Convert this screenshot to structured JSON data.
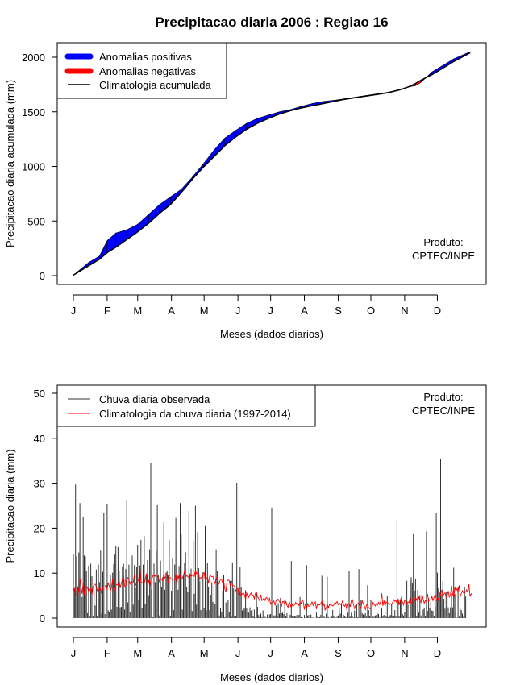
{
  "page_title": "Precipitacao diaria 2006 : Regiao 16",
  "credit": [
    "Produto:",
    "CPTEC/INPE"
  ],
  "months": [
    "J",
    "F",
    "M",
    "A",
    "M",
    "J",
    "J",
    "A",
    "S",
    "O",
    "N",
    "D"
  ],
  "colors": {
    "positive": "#0000ff",
    "negative": "#ff0000",
    "climatology": "#000000",
    "observed": "#333333",
    "daily_climatology": "#ff0000"
  },
  "chart_data": [
    {
      "type": "area",
      "title": "Precipitacao diaria 2006 : Regiao 16",
      "xlabel": "Meses (dados diarios)",
      "ylabel": "Precipitacao diaria acumulada (mm)",
      "xlim": [
        1,
        365
      ],
      "ylim": [
        0,
        2000
      ],
      "yticks": [
        0,
        500,
        1000,
        1500,
        2000
      ],
      "legend": {
        "position": "top-left",
        "entries": [
          {
            "label": "Anomalias positivas",
            "kind": "thick",
            "color": "#0000ff"
          },
          {
            "label": "Anomalias negativas",
            "kind": "thick",
            "color": "#ff0000"
          },
          {
            "label": "Climatologia acumulada",
            "kind": "line",
            "color": "#000000"
          }
        ]
      },
      "x": [
        1,
        15,
        25,
        32,
        40,
        50,
        60,
        70,
        80,
        90,
        100,
        110,
        120,
        130,
        140,
        150,
        160,
        170,
        180,
        190,
        200,
        210,
        220,
        230,
        240,
        250,
        260,
        270,
        280,
        290,
        300,
        305,
        310,
        315,
        320,
        330,
        340,
        350,
        365
      ],
      "climatology": [
        5,
        90,
        150,
        210,
        260,
        330,
        400,
        480,
        570,
        650,
        760,
        880,
        990,
        1090,
        1190,
        1270,
        1340,
        1395,
        1440,
        1480,
        1510,
        1535,
        1555,
        1575,
        1595,
        1615,
        1630,
        1645,
        1660,
        1675,
        1700,
        1715,
        1735,
        1760,
        1790,
        1840,
        1900,
        1960,
        2040
      ],
      "observed": [
        5,
        120,
        180,
        320,
        390,
        420,
        470,
        560,
        650,
        720,
        790,
        900,
        1020,
        1150,
        1260,
        1330,
        1395,
        1440,
        1470,
        1500,
        1520,
        1550,
        1575,
        1595,
        1605,
        1620,
        1635,
        1650,
        1665,
        1680,
        1705,
        1720,
        1730,
        1740,
        1770,
        1865,
        1925,
        1985,
        2050
      ]
    },
    {
      "type": "bar",
      "title": "",
      "xlabel": "Meses (dados diarios)",
      "ylabel": "Precipitacao diaria (mm)",
      "xlim": [
        1,
        365
      ],
      "ylim": [
        0,
        50
      ],
      "yticks": [
        0,
        10,
        20,
        30,
        40,
        50
      ],
      "legend": {
        "position": "top-left",
        "entries": [
          {
            "label": "Chuva diaria observada",
            "kind": "line",
            "color": "#333333"
          },
          {
            "label": "Climatologia da chuva diaria (1997-2014)",
            "kind": "line",
            "color": "#ff0000"
          }
        ]
      },
      "series": [
        {
          "name": "Chuva diaria observada",
          "values": [
            14.3,
            6.5,
            29.7,
            13.7,
            6.6,
            14.6,
            25.6,
            7.6,
            4.7,
            22.6,
            13.9,
            13.7,
            10.4,
            1.1,
            11.7,
            0.3,
            12.1,
            9.3,
            0.4,
            6.3,
            2.8,
            10.8,
            0.5,
            11.9,
            8.0,
            15.0,
            1.0,
            10.3,
            23.4,
            0.9,
            44.0,
            25.3,
            1.7,
            1.4,
            9.6,
            1.9,
            10.1,
            12.0,
            14.1,
            16.1,
            2.5,
            15.8,
            10.4,
            2.4,
            2.5,
            11.3,
            12.1,
            1.9,
            10.9,
            26.2,
            3.5,
            11.9,
            1.4,
            8.1,
            13.9,
            3.0,
            11.8,
            6.7,
            11.4,
            16.3,
            4.1,
            11.7,
            17.4,
            2.3,
            11.9,
            18.2,
            3.1,
            9.9,
            12.9,
            5.1,
            15.3,
            34.4,
            6.3,
            0.2,
            12.1,
            8.0,
            15.0,
            25.1,
            9.7,
            0.6,
            12.8,
            7.0,
            9.1,
            21.3,
            6.3,
            10.1,
            10.6,
            9.6,
            17.4,
            0.5,
            6.1,
            13.3,
            1.8,
            11.9,
            22.3,
            17.6,
            6.3,
            11.6,
            25.6,
            18.6,
            1.9,
            9.5,
            12.3,
            14.6,
            7.0,
            5.8,
            23.9,
            9.7,
            11.0,
            1.6,
            17.2,
            5.4,
            25.0,
            3.0,
            19.1,
            11.1,
            8.2,
            1.8,
            17.5,
            10.2,
            2.2,
            20.5,
            1.7,
            12.2,
            7.0,
            1.8,
            5.2,
            8.0,
            3.6,
            7.6,
            3.1,
            15.3,
            10.5,
            8.3,
            0.6,
            2.3,
            1.3,
            6.1,
            9.5,
            0.2,
            3.5,
            1.8,
            4.1,
            1.3,
            8.3,
            0.3,
            12.4,
            6.6,
            0.4,
            0.4,
            30.1,
            6.7,
            11.8,
            11.3,
            6.9,
            1.7,
            2.4,
            2.1,
            6.2,
            2.3,
            1.3,
            1.2,
            2.4,
            1.7,
            1.9,
            0.4,
            1.9,
            0.1,
            5.9,
            2.5,
            0.7,
            0.2,
            1.0,
            0.2,
            1.7,
            1.5,
            0.3,
            0.1,
            0.8,
            0.1,
            0.8,
            0.9,
            24.6,
            0.5,
            0.6,
            0.6,
            2.8,
            0.5,
            3.3,
            1.0,
            4.5,
            1.1,
            1.2,
            0.9,
            4.2,
            0.4,
            1.1,
            0.0,
            0.8,
            0.7,
            12.7,
            0.5,
            0.5,
            0.4,
            0.3,
            0.7,
            0.6,
            0.7,
            4.7,
            0.2,
            0.2,
            0.0,
            0.7,
            0.1,
            11.8,
            0.6,
            0.7,
            0.0,
            0.8,
            0.1,
            0.1,
            0.2,
            0.0,
            1.3,
            0.3,
            0.1,
            0.2,
            0.7,
            9.4,
            0.3,
            0.4,
            0.1,
            1.0,
            9.2,
            0.2,
            0.0,
            0.2,
            0.3,
            1.8,
            0.5,
            0.6,
            0.1,
            0.3,
            0.6,
            2.2,
            1.0,
            3.1,
            0.1,
            0.7,
            0.4,
            0.2,
            0.3,
            1.2,
            10.4,
            0.3,
            1.2,
            0.4,
            0.1,
            1.7,
            0.1,
            3.1,
            0.2,
            10.9,
            1.3,
            4.0,
            1.1,
            0.8,
            0.7,
            1.1,
            0.3,
            7.3,
            1.8,
            0.5,
            4.0,
            2.6,
            0.3,
            0.3,
            0.6,
            0.7,
            1.0,
            0.9,
            0.1,
            0.3,
            2.3,
            0.4,
            0.7,
            1.9,
            0.5,
            4.9,
            0.2,
            0.5,
            0.7,
            3.2,
            0.6,
            0.5,
            1.8,
            0.4,
            21.8,
            4.0,
            0.5,
            3.9,
            4.7,
            0.9,
            0.6,
            1.4,
            4.0,
            8.3,
            3.2,
            0.1,
            8.3,
            9.1,
            7.8,
            18.7,
            6.1,
            8.8,
            0.5,
            6.3,
            1.2,
            5.1,
            0.6,
            1.0,
            1.9,
            2.3,
            0.4,
            19.3,
            1.6,
            4.4,
            2.2,
            3.7,
            1.7,
            1.6,
            0.5,
            2.5,
            23.4,
            10.1,
            6.6,
            5.9,
            35.3,
            5.3,
            8.1,
            4.3,
            2.1,
            5.9,
            5.6,
            2.4,
            1.1,
            2.4,
            5.5,
            2.4,
            11.2,
            5.4,
            1.3,
            0.1,
            6.9,
            0.3,
            2.1,
            1.8,
            1.0,
            0.3,
            6.9,
            4.8,
            0.0
          ]
        },
        {
          "name": "Climatologia da chuva diaria (1997-2014)",
          "values": [
            6.0,
            6.6,
            5.3,
            5.2,
            7.1,
            5.7,
            8.9,
            6.9,
            5.4,
            7.9,
            5.2,
            7.2,
            6.7,
            6.8,
            5.9,
            6.2,
            6.6,
            5.1,
            6.8,
            7.5,
            7.5,
            7.1,
            6.1,
            6.5,
            6.0,
            6.5,
            5.5,
            6.9,
            6.9,
            6.9,
            7.5,
            6.3,
            7.9,
            7.1,
            6.1,
            6.8,
            8.8,
            5.5,
            6.5,
            7.3,
            7.5,
            7.3,
            8.4,
            6.7,
            7.8,
            8.6,
            9.7,
            7.1,
            7.2,
            8.7,
            9.0,
            8.5,
            7.6,
            8.3,
            7.8,
            7.9,
            9.8,
            7.2,
            7.8,
            8.1,
            8.6,
            11.4,
            8.0,
            7.9,
            7.8,
            7.7,
            8.7,
            9.9,
            7.5,
            8.5,
            7.1,
            8.5,
            8.7,
            9.4,
            9.5,
            9.3,
            9.6,
            9.4,
            9.1,
            8.0,
            8.8,
            8.6,
            8.3,
            9.9,
            8.9,
            9.2,
            10.0,
            7.8,
            9.0,
            9.0,
            8.6,
            8.7,
            8.7,
            8.5,
            10.0,
            7.6,
            9.4,
            8.7,
            9.7,
            8.5,
            8.9,
            9.4,
            10.5,
            9.1,
            9.5,
            9.2,
            9.0,
            9.8,
            9.2,
            9.6,
            9.3,
            9.3,
            10.7,
            9.9,
            10.1,
            9.9,
            8.5,
            9.1,
            8.8,
            9.7,
            10.1,
            8.3,
            8.8,
            9.1,
            7.7,
            9.3,
            9.4,
            9.2,
            9.3,
            8.2,
            7.7,
            9.1,
            8.4,
            7.4,
            7.8,
            8.7,
            8.6,
            7.7,
            8.2,
            6.4,
            5.9,
            8.2,
            8.5,
            8.3,
            7.2,
            8.3,
            7.3,
            7.2,
            6.9,
            6.1,
            6.4,
            6.6,
            5.0,
            5.7,
            5.0,
            5.4,
            5.6,
            5.2,
            4.2,
            5.6,
            4.9,
            4.6,
            5.2,
            5.6,
            5.0,
            5.2,
            4.2,
            5.5,
            5.8,
            4.7,
            4.4,
            3.8,
            5.2,
            3.9,
            4.2,
            4.5,
            3.9,
            4.6,
            4.4,
            3.7,
            4.4,
            3.1,
            3.5,
            3.5,
            3.8,
            2.8,
            3.9,
            4.2,
            4.2,
            3.6,
            3.6,
            2.6,
            3.7,
            3.7,
            2.9,
            3.8,
            2.8,
            2.4,
            3.7,
            3.0,
            2.3,
            3.1,
            2.7,
            3.0,
            3.5,
            3.1,
            3.4,
            2.8,
            3.6,
            3.3,
            4.2,
            3.6,
            1.9,
            3.2,
            2.1,
            3.2,
            2.6,
            2.7,
            3.1,
            3.6,
            2.8,
            3.2,
            3.6,
            2.0,
            3.2,
            3.0,
            2.9,
            3.2,
            3.8,
            2.5,
            3.3,
            1.8,
            2.2,
            3.2,
            2.3,
            3.0,
            2.9,
            2.9,
            2.7,
            2.9,
            3.5,
            3.3,
            3.7,
            3.0,
            3.4,
            3.0,
            3.1,
            3.9,
            2.9,
            2.6,
            3.2,
            1.7,
            3.1,
            3.3,
            2.5,
            3.9,
            4.1,
            3.1,
            2.0,
            2.9,
            3.0,
            3.2,
            3.5,
            2.6,
            2.2,
            3.9,
            3.2,
            2.7,
            1.9,
            2.9,
            3.1,
            2.3,
            2.1,
            2.2,
            2.3,
            3.5,
            3.0,
            2.7,
            3.2,
            2.9,
            3.5,
            3.0,
            3.7,
            5.5,
            2.7,
            3.9,
            2.6,
            3.6,
            3.4,
            3.3,
            3.0,
            3.2,
            3.1,
            3.5,
            4.1,
            3.7,
            3.9,
            3.3,
            4.3,
            2.9,
            4.1,
            3.5,
            3.6,
            2.9,
            4.0,
            3.8,
            3.1,
            3.6,
            3.4,
            4.7,
            3.2,
            3.6,
            3.7,
            4.4,
            3.7,
            4.3,
            3.7,
            4.7,
            4.0,
            3.5,
            5.3,
            4.2,
            3.3,
            3.9,
            3.6,
            5.4,
            3.8,
            4.1,
            4.0,
            4.8,
            3.9,
            4.6,
            5.3,
            4.3,
            3.7,
            4.4,
            5.3,
            5.1,
            6.3,
            4.9,
            5.3,
            5.6,
            4.7,
            5.0,
            6.0,
            4.7,
            5.2,
            7.2,
            5.4,
            4.4,
            6.9,
            6.0,
            6.5,
            5.9,
            7.3,
            4.8,
            5.5,
            6.1,
            5.6,
            5.6,
            5.9,
            6.3,
            5.7,
            7.5,
            4.8,
            5.4,
            5.1
          ]
        }
      ]
    }
  ]
}
